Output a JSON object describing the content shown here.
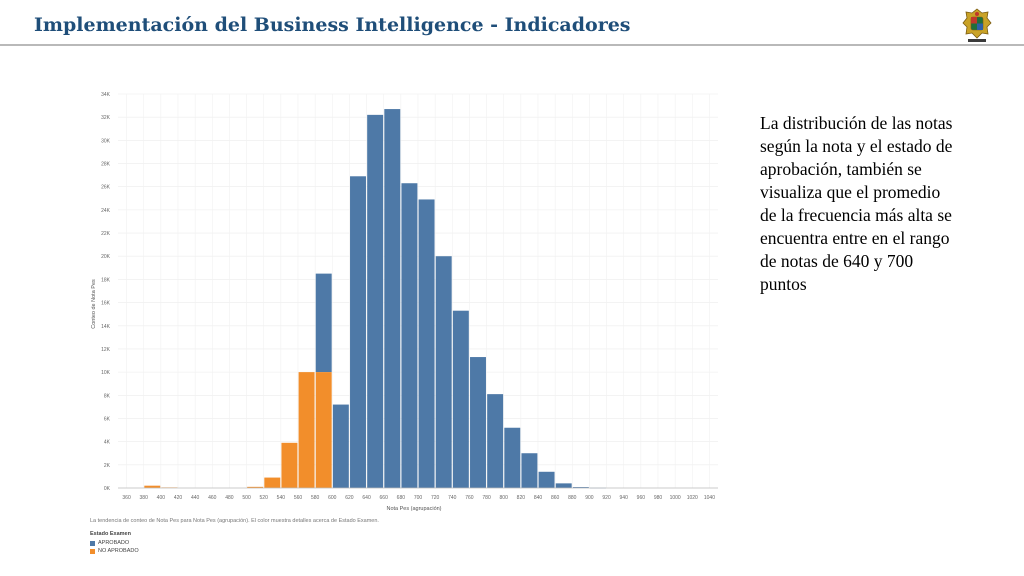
{
  "header": {
    "title": "Implementación del Business Intelligence - Indicadores",
    "logo_icon": "university-crest-icon"
  },
  "chart_data": {
    "type": "bar",
    "xlabel": "Nota Pes (agrupación)",
    "ylabel": "Conteo de Nota Pes",
    "x_ticks": [
      "360",
      "380",
      "400",
      "420",
      "440",
      "460",
      "480",
      "500",
      "520",
      "540",
      "560",
      "580",
      "600",
      "620",
      "640",
      "660",
      "680",
      "700",
      "720",
      "740",
      "760",
      "780",
      "800",
      "820",
      "840",
      "860",
      "880",
      "900",
      "920",
      "940",
      "960",
      "980",
      "1000",
      "1020",
      "1040"
    ],
    "y_ticks": [
      "0K",
      "2K",
      "4K",
      "6K",
      "8K",
      "10K",
      "12K",
      "14K",
      "16K",
      "18K",
      "20K",
      "22K",
      "24K",
      "26K",
      "28K",
      "30K",
      "32K",
      "34K"
    ],
    "ylim": [
      0,
      34000
    ],
    "xlim": [
      350,
      1050
    ],
    "bin_width": 20,
    "grid": true,
    "series": [
      {
        "name": "APROBADO",
        "color": "#4e79a7",
        "bins": [
          {
            "x": 600,
            "value": 7200
          },
          {
            "x": 620,
            "value": 26900
          },
          {
            "x": 640,
            "value": 32200
          },
          {
            "x": 660,
            "value": 32700
          },
          {
            "x": 680,
            "value": 26300
          },
          {
            "x": 700,
            "value": 24900
          },
          {
            "x": 720,
            "value": 20000
          },
          {
            "x": 740,
            "value": 15300
          },
          {
            "x": 760,
            "value": 11300
          },
          {
            "x": 780,
            "value": 8100
          },
          {
            "x": 800,
            "value": 5200
          },
          {
            "x": 820,
            "value": 3000
          },
          {
            "x": 840,
            "value": 1400
          },
          {
            "x": 860,
            "value": 400
          },
          {
            "x": 880,
            "value": 80
          },
          {
            "x": 900,
            "value": 20
          }
        ],
        "stacked_on_other": {
          "x": 580,
          "value": 8500,
          "base": 10000
        }
      },
      {
        "name": "NO APROBADO",
        "color": "#f28e2b",
        "bins": [
          {
            "x": 380,
            "value": 200
          },
          {
            "x": 400,
            "value": 50
          },
          {
            "x": 500,
            "value": 100
          },
          {
            "x": 520,
            "value": 900
          },
          {
            "x": 540,
            "value": 3900
          },
          {
            "x": 560,
            "value": 10000
          },
          {
            "x": 580,
            "value": 10000
          }
        ]
      }
    ],
    "caption": "La tendencia de conteo de Nota Pes para Nota Pes (agrupación). El color muestra detalles acerca de Estado Examen.",
    "legend": {
      "title": "Estado Examen",
      "items": [
        {
          "label": "APROBADO",
          "color": "#4e79a7"
        },
        {
          "label": "NO APROBADO",
          "color": "#f28e2b"
        }
      ]
    }
  },
  "note": {
    "text": "La distribución de las notas según la nota y el estado de aprobación, también se visualiza que el promedio de la frecuencia más alta se encuentra entre en el rango de notas de 640 y 700 puntos"
  }
}
